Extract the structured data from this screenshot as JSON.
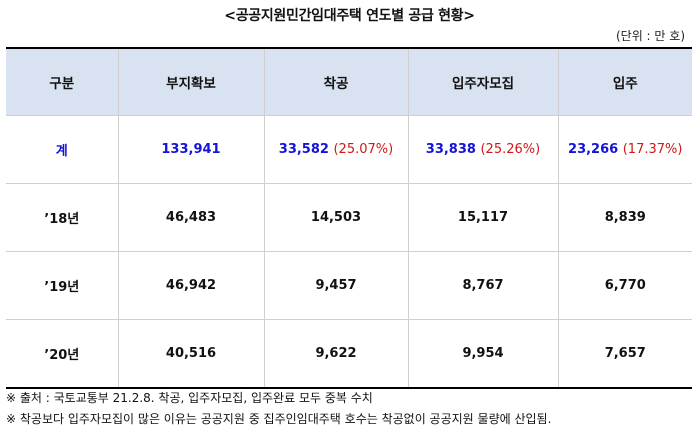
{
  "title": "<공공지원민간임대주택 연도별 공급 현황>",
  "unit": "(단위 : 만 호)",
  "headers": [
    "구분",
    "부지확보",
    "착공",
    "입주자모집",
    "입주"
  ],
  "total": {
    "label": "계",
    "site": "133,941",
    "start": "33,582",
    "start_pct": "(25.07%)",
    "recruit": "33,838",
    "recruit_pct": "(25.26%)",
    "move_in": "23,266",
    "move_in_pct": "(17.37%)"
  },
  "rows": [
    {
      "year": "’18년",
      "site": "46,483",
      "start": "14,503",
      "recruit": "15,117",
      "move_in": "8,839"
    },
    {
      "year": "’19년",
      "site": "46,942",
      "start": "9,457",
      "recruit": "8,767",
      "move_in": "6,770"
    },
    {
      "year": "’20년",
      "site": "40,516",
      "start": "9,622",
      "recruit": "9,954",
      "move_in": "7,657"
    }
  ],
  "notes": [
    "※ 출처 : 국토교통부 21.2.8. 착공, 입주자모집, 입주완료 모두 중복 수치",
    "※ 착공보다 입주자모집이 많은 이유는 공공지원 중 집주인임대주택 호수는 착공없이 공공지원 물량에 산입됨."
  ],
  "colors": {
    "header_bg": "#d9e2f1",
    "total_blue": "#1414d8",
    "pct_red": "#d01818"
  }
}
